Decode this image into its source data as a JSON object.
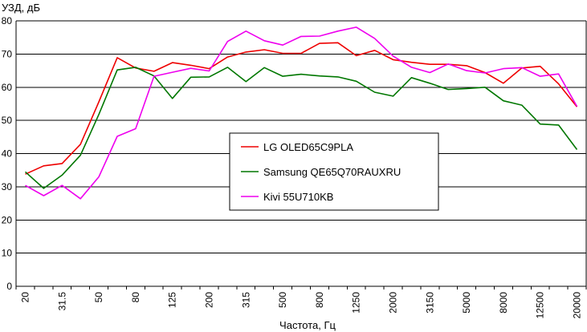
{
  "chart_data": {
    "type": "line",
    "ylabel": "УЗД, дБ",
    "xlabel": "Частота, Гц",
    "ylim": [
      0,
      80
    ],
    "yticks": [
      0,
      10,
      20,
      30,
      40,
      50,
      60,
      70,
      80
    ],
    "grid": true,
    "legend_position": "center",
    "categories": [
      "20",
      "25",
      "31.5",
      "40",
      "50",
      "63",
      "80",
      "100",
      "125",
      "160",
      "200",
      "250",
      "315",
      "400",
      "500",
      "630",
      "800",
      "1000",
      "1250",
      "1600",
      "2000",
      "2500",
      "3150",
      "4000",
      "5000",
      "6300",
      "8000",
      "10000",
      "12500",
      "16000",
      "20000"
    ],
    "x_tick_labels": [
      "20",
      "",
      "31.5",
      "",
      "50",
      "",
      "80",
      "",
      "125",
      "",
      "200",
      "",
      "315",
      "",
      "500",
      "",
      "800",
      "",
      "1250",
      "",
      "2000",
      "",
      "3150",
      "",
      "5000",
      "",
      "8000",
      "",
      "12500",
      "",
      "20000"
    ],
    "series": [
      {
        "name": "LG OLED65C9PLA",
        "color": "#ee0000",
        "values": [
          33.8,
          36.3,
          37.0,
          42.8,
          55.6,
          68.9,
          65.8,
          64.8,
          67.4,
          66.6,
          65.6,
          69.1,
          70.6,
          71.3,
          70.2,
          70.2,
          73.2,
          73.4,
          69.5,
          71.1,
          68.3,
          67.5,
          66.9,
          66.9,
          66.5,
          64.4,
          61.2,
          65.8,
          66.3,
          61.0,
          54.1
        ]
      },
      {
        "name": "Samsung QE65Q70RAUXRU",
        "color": "#007700",
        "values": [
          34.5,
          29.5,
          33.5,
          39.5,
          51.8,
          65.2,
          66.0,
          63.4,
          56.6,
          63.0,
          63.1,
          66.0,
          61.7,
          65.9,
          63.3,
          63.9,
          63.4,
          63.1,
          61.8,
          58.5,
          57.3,
          62.9,
          61.2,
          59.3,
          59.6,
          60.0,
          55.9,
          54.6,
          48.9,
          48.6,
          41.2
        ]
      },
      {
        "name": "Kivi 55U710KB",
        "color": "#ee00ee",
        "values": [
          30.4,
          27.3,
          30.4,
          26.4,
          33.0,
          45.2,
          47.5,
          63.3,
          64.5,
          65.7,
          64.9,
          73.8,
          76.9,
          74.0,
          72.7,
          75.3,
          75.4,
          76.9,
          78.1,
          74.7,
          69.4,
          66.0,
          64.4,
          67.0,
          65.0,
          64.3,
          65.6,
          65.9,
          63.3,
          64.0,
          54.2
        ]
      }
    ]
  }
}
